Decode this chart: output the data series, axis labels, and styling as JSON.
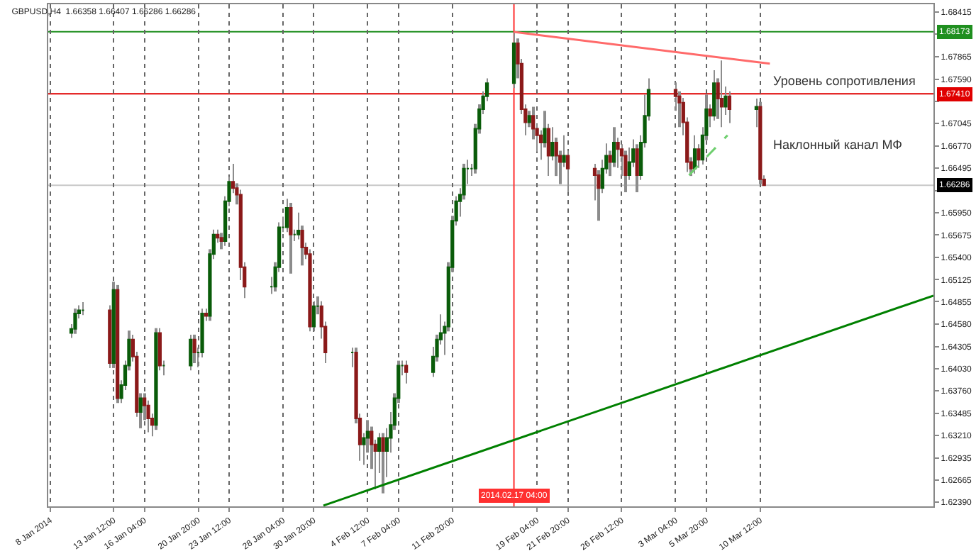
{
  "chart_data": {
    "type": "candlestick",
    "title": "GBPUSD,H4  1.66358 1.66407 1.66286 1.66286",
    "series": [
      {
        "x": [
          "2014-01-09T20:00",
          "2014-01-10T04:00",
          "2014-01-10T12:00",
          "2014-01-10T20:00",
          "2014-01-13T04:00",
          "2014-01-13T12:00",
          "2014-01-13T20:00",
          "2014-01-14T04:00",
          "2014-01-14T12:00",
          "2014-01-14T20:00",
          "2014-01-15T04:00",
          "2014-01-15T12:00",
          "2014-01-15T20:00",
          "2014-01-16T04:00",
          "2014-01-16T12:00",
          "2014-01-16T20:00",
          "2014-01-17T04:00",
          "2014-01-17T12:00",
          "2014-01-17T20:00",
          "2014-01-20T04:00",
          "2014-01-20T12:00",
          "2014-01-20T20:00",
          "2014-01-21T04:00",
          "2014-01-21T12:00",
          "2014-01-21T20:00",
          "2014-01-22T04:00",
          "2014-01-22T12:00",
          "2014-01-22T20:00",
          "2014-01-23T04:00",
          "2014-01-23T12:00",
          "2014-01-23T20:00",
          "2014-01-24T04:00",
          "2014-01-24T12:00",
          "2014-01-24T20:00",
          "2014-01-27T04:00",
          "2014-01-27T12:00",
          "2014-01-27T20:00",
          "2014-01-28T04:00",
          "2014-01-28T12:00",
          "2014-01-28T20:00",
          "2014-01-29T04:00",
          "2014-01-29T12:00",
          "2014-01-29T20:00",
          "2014-01-30T04:00",
          "2014-01-30T12:00",
          "2014-01-30T20:00",
          "2014-01-31T04:00",
          "2014-01-31T12:00",
          "2014-01-31T20:00",
          "2014-02-03T04:00",
          "2014-02-03T12:00",
          "2014-02-03T20:00",
          "2014-02-04T04:00",
          "2014-02-04T12:00",
          "2014-02-04T20:00",
          "2014-02-05T04:00",
          "2014-02-05T12:00",
          "2014-02-05T20:00",
          "2014-02-06T04:00",
          "2014-02-06T12:00",
          "2014-02-06T20:00",
          "2014-02-07T04:00",
          "2014-02-07T12:00",
          "2014-02-07T20:00",
          "2014-02-10T04:00",
          "2014-02-10T12:00",
          "2014-02-10T20:00",
          "2014-02-11T04:00",
          "2014-02-11T12:00",
          "2014-02-11T20:00",
          "2014-02-12T04:00",
          "2014-02-12T12:00",
          "2014-02-12T20:00",
          "2014-02-13T04:00",
          "2014-02-13T12:00",
          "2014-02-13T20:00",
          "2014-02-14T04:00",
          "2014-02-14T12:00",
          "2014-02-14T20:00",
          "2014-02-17T04:00",
          "2014-02-17T12:00",
          "2014-02-17T20:00",
          "2014-02-18T04:00",
          "2014-02-18T12:00",
          "2014-02-18T20:00",
          "2014-02-19T04:00",
          "2014-02-19T12:00",
          "2014-02-19T20:00",
          "2014-02-20T04:00",
          "2014-02-20T12:00",
          "2014-02-20T20:00",
          "2014-02-21T04:00",
          "2014-02-21T12:00",
          "2014-02-21T20:00",
          "2014-02-24T04:00",
          "2014-02-24T12:00",
          "2014-02-24T20:00",
          "2014-02-25T04:00",
          "2014-02-25T12:00",
          "2014-02-25T20:00",
          "2014-02-26T04:00",
          "2014-02-26T12:00",
          "2014-02-26T20:00",
          "2014-02-27T04:00",
          "2014-02-27T12:00",
          "2014-02-27T20:00",
          "2014-02-28T04:00",
          "2014-02-28T12:00",
          "2014-02-28T20:00",
          "2014-03-03T04:00",
          "2014-03-03T12:00",
          "2014-03-03T20:00",
          "2014-03-04T04:00",
          "2014-03-04T12:00",
          "2014-03-04T20:00",
          "2014-03-05T04:00",
          "2014-03-05T12:00",
          "2014-03-05T20:00",
          "2014-03-06T04:00",
          "2014-03-06T12:00",
          "2014-03-06T20:00",
          "2014-03-07T04:00",
          "2014-03-07T12:00",
          "2014-03-07T20:00",
          "2014-03-10T04:00",
          "2014-03-10T12:00",
          "2014-03-10T20:00"
        ],
        "ohlc": [
          [
            1.6447,
            1.6458,
            1.6441,
            1.6452
          ],
          [
            1.6452,
            1.6477,
            1.6446,
            1.6471
          ],
          [
            1.6471,
            1.6481,
            1.6465,
            1.6475
          ],
          [
            1.6475,
            1.6485,
            1.6469,
            1.6475
          ],
          [
            1.6475,
            1.6481,
            1.6404,
            1.641
          ],
          [
            1.641,
            1.651,
            1.6404,
            1.65
          ],
          [
            1.65,
            1.6506,
            1.6361,
            1.6367
          ],
          [
            1.6367,
            1.6389,
            1.6361,
            1.6383
          ],
          [
            1.6383,
            1.6413,
            1.6377,
            1.6407
          ],
          [
            1.6407,
            1.645,
            1.6401,
            1.6439
          ],
          [
            1.6439,
            1.6445,
            1.6412,
            1.6418
          ],
          [
            1.6418,
            1.6424,
            1.6344,
            1.635
          ],
          [
            1.635,
            1.6373,
            1.633,
            1.6367
          ],
          [
            1.6367,
            1.6373,
            1.634,
            1.6358
          ],
          [
            1.6358,
            1.6364,
            1.6325,
            1.6342
          ],
          [
            1.6342,
            1.6348,
            1.632,
            1.6334
          ],
          [
            1.6334,
            1.6453,
            1.6328,
            1.6447
          ],
          [
            1.6447,
            1.6453,
            1.6401,
            1.6407
          ],
          [
            1.6407,
            1.6413,
            1.6395,
            1.6407
          ],
          [
            1.6407,
            1.6445,
            1.6401,
            1.6439
          ],
          [
            1.6439,
            1.6445,
            1.641,
            1.6423
          ],
          [
            1.6423,
            1.6429,
            1.6405,
            1.6423
          ],
          [
            1.6423,
            1.6477,
            1.6417,
            1.6471
          ],
          [
            1.6471,
            1.6477,
            1.6462,
            1.6468
          ],
          [
            1.6468,
            1.655,
            1.6462,
            1.6544
          ],
          [
            1.6544,
            1.6574,
            1.6538,
            1.6568
          ],
          [
            1.6568,
            1.6574,
            1.6558,
            1.6564
          ],
          [
            1.6564,
            1.657,
            1.655,
            1.656
          ],
          [
            1.656,
            1.6615,
            1.6554,
            1.6609
          ],
          [
            1.6609,
            1.6639,
            1.6603,
            1.6633
          ],
          [
            1.6633,
            1.6655,
            1.6619,
            1.6625
          ],
          [
            1.6625,
            1.6631,
            1.6605,
            1.6617
          ],
          [
            1.6617,
            1.6623,
            1.6512,
            1.6528
          ],
          [
            1.6528,
            1.6534,
            1.649,
            1.6504
          ],
          [
            1.6504,
            1.6516,
            1.6495,
            1.6504
          ],
          [
            1.6504,
            1.6534,
            1.6498,
            1.6528
          ],
          [
            1.6528,
            1.6583,
            1.6522,
            1.6577
          ],
          [
            1.6577,
            1.659,
            1.6571,
            1.6577
          ],
          [
            1.6577,
            1.6612,
            1.6571,
            1.6601
          ],
          [
            1.6601,
            1.6607,
            1.652,
            1.6568
          ],
          [
            1.6568,
            1.6574,
            1.656,
            1.6568
          ],
          [
            1.6568,
            1.6595,
            1.6562,
            1.6573
          ],
          [
            1.6573,
            1.6579,
            1.653,
            1.6552
          ],
          [
            1.6552,
            1.6558,
            1.6538,
            1.6544
          ],
          [
            1.6544,
            1.655,
            1.6449,
            1.6455
          ],
          [
            1.6455,
            1.6486,
            1.6449,
            1.648
          ],
          [
            1.648,
            1.6492,
            1.647,
            1.648
          ],
          [
            1.648,
            1.6486,
            1.644,
            1.6455
          ],
          [
            1.6455,
            1.6461,
            1.641,
            1.6423
          ],
          [
            1.6423,
            1.6429,
            1.6405,
            1.6423
          ],
          [
            1.6423,
            1.6429,
            1.6336,
            1.6342
          ],
          [
            1.6342,
            1.6348,
            1.629,
            1.631
          ],
          [
            1.631,
            1.6324,
            1.6285,
            1.6318
          ],
          [
            1.6318,
            1.634,
            1.63,
            1.6326
          ],
          [
            1.6326,
            1.6332,
            1.628,
            1.631
          ],
          [
            1.631,
            1.6316,
            1.6255,
            1.6302
          ],
          [
            1.6302,
            1.6324,
            1.6275,
            1.6318
          ],
          [
            1.6318,
            1.6324,
            1.625,
            1.6302
          ],
          [
            1.6302,
            1.633,
            1.627,
            1.6318
          ],
          [
            1.6318,
            1.635,
            1.63,
            1.6334
          ],
          [
            1.6334,
            1.6373,
            1.6328,
            1.6367
          ],
          [
            1.6367,
            1.6413,
            1.6361,
            1.6407
          ],
          [
            1.6407,
            1.6413,
            1.6395,
            1.6407
          ],
          [
            1.6407,
            1.6413,
            1.6385,
            1.6399
          ],
          [
            1.6399,
            1.643,
            1.6393,
            1.6418
          ],
          [
            1.6418,
            1.6445,
            1.6412,
            1.6439
          ],
          [
            1.6439,
            1.647,
            1.6433,
            1.6447
          ],
          [
            1.6447,
            1.6461,
            1.642,
            1.6455
          ],
          [
            1.6455,
            1.6534,
            1.6449,
            1.6528
          ],
          [
            1.6528,
            1.6591,
            1.6522,
            1.6585
          ],
          [
            1.6585,
            1.6615,
            1.6579,
            1.6609
          ],
          [
            1.6609,
            1.6625,
            1.659,
            1.6617
          ],
          [
            1.6617,
            1.6655,
            1.6611,
            1.6649
          ],
          [
            1.6649,
            1.666,
            1.663,
            1.6649
          ],
          [
            1.6649,
            1.6655,
            1.664,
            1.6649
          ],
          [
            1.6649,
            1.6704,
            1.6643,
            1.6698
          ],
          [
            1.6698,
            1.6728,
            1.6692,
            1.6722
          ],
          [
            1.6722,
            1.6744,
            1.6716,
            1.6738
          ],
          [
            1.6738,
            1.676,
            1.6732,
            1.6754
          ],
          [
            1.6754,
            1.6817,
            1.6748,
            1.6803
          ],
          [
            1.6803,
            1.6809,
            1.676,
            1.6778
          ],
          [
            1.6778,
            1.6784,
            1.6716,
            1.6722
          ],
          [
            1.6722,
            1.6728,
            1.669,
            1.6706
          ],
          [
            1.6706,
            1.672,
            1.67,
            1.6714
          ],
          [
            1.6714,
            1.6725,
            1.6685,
            1.6698
          ],
          [
            1.6698,
            1.6704,
            1.667,
            1.669
          ],
          [
            1.669,
            1.6696,
            1.666,
            1.6681
          ],
          [
            1.6681,
            1.672,
            1.6675,
            1.6698
          ],
          [
            1.6698,
            1.6704,
            1.664,
            1.6665
          ],
          [
            1.6665,
            1.67,
            1.6659,
            1.6681
          ],
          [
            1.6681,
            1.6687,
            1.664,
            1.6665
          ],
          [
            1.6665,
            1.6671,
            1.663,
            1.6657
          ],
          [
            1.6657,
            1.669,
            1.6651,
            1.6665
          ],
          [
            1.6665,
            1.6671,
            1.662,
            1.6649
          ],
          [
            1.6649,
            1.6655,
            1.661,
            1.6641
          ],
          [
            1.6641,
            1.6647,
            1.6585,
            1.6625
          ],
          [
            1.6625,
            1.666,
            1.6619,
            1.6649
          ],
          [
            1.6649,
            1.668,
            1.6643,
            1.6665
          ],
          [
            1.6665,
            1.6671,
            1.664,
            1.6657
          ],
          [
            1.6657,
            1.67,
            1.6651,
            1.6681
          ],
          [
            1.6681,
            1.6687,
            1.665,
            1.6673
          ],
          [
            1.6673,
            1.6679,
            1.664,
            1.6665
          ],
          [
            1.6665,
            1.6671,
            1.662,
            1.6641
          ],
          [
            1.6641,
            1.6675,
            1.6635,
            1.6657
          ],
          [
            1.6657,
            1.6685,
            1.6651,
            1.6673
          ],
          [
            1.6673,
            1.6679,
            1.662,
            1.6641
          ],
          [
            1.6641,
            1.669,
            1.6635,
            1.6681
          ],
          [
            1.6681,
            1.674,
            1.6675,
            1.6714
          ],
          [
            1.6714,
            1.676,
            1.6708,
            1.6746
          ],
          [
            1.6746,
            1.6755,
            1.672,
            1.6738
          ],
          [
            1.6738,
            1.6744,
            1.67,
            1.673
          ],
          [
            1.673,
            1.6736,
            1.669,
            1.6706
          ],
          [
            1.6706,
            1.6712,
            1.6645,
            1.6657
          ],
          [
            1.6657,
            1.6663,
            1.664,
            1.6649
          ],
          [
            1.6649,
            1.669,
            1.6643,
            1.6673
          ],
          [
            1.6673,
            1.6679,
            1.665,
            1.666
          ],
          [
            1.666,
            1.67,
            1.6654,
            1.669
          ],
          [
            1.669,
            1.674,
            1.6684,
            1.6722
          ],
          [
            1.6722,
            1.6728,
            1.67,
            1.6714
          ],
          [
            1.6714,
            1.677,
            1.6708,
            1.6754
          ],
          [
            1.6754,
            1.676,
            1.671,
            1.6735
          ],
          [
            1.6735,
            1.6782,
            1.67,
            1.6725
          ],
          [
            1.6725,
            1.675,
            1.6715,
            1.6738
          ],
          [
            1.6738,
            1.6744,
            1.6705,
            1.6722
          ],
          [
            1.6722,
            1.6735,
            1.67,
            1.6725
          ],
          [
            1.6725,
            1.6731,
            1.663,
            1.6636
          ],
          [
            1.66358,
            1.66407,
            1.66286,
            1.66286
          ]
        ]
      },
      {
        "type": "line",
        "color": "#008000",
        "x": [
          "2014-01-31T16:00",
          "2014-03-25T12:00"
        ],
        "values": [
          1.6235,
          1.6493
        ]
      },
      {
        "type": "line",
        "color": "#ff6a6a",
        "x": [
          "2014-02-17T04:00",
          "2014-03-11T08:00"
        ],
        "values": [
          1.6817,
          1.6778
        ]
      },
      {
        "type": "line",
        "color": "#6fcf6f",
        "line_style": "dashed",
        "x": [
          "2014-03-04T08:00",
          "2014-03-07T16:00"
        ],
        "values": [
          1.6641,
          1.669
        ]
      }
    ],
    "xlim": [
      "2014-01-07T20:00",
      "2014-03-25T12:00"
    ],
    "xticks": [
      {
        "value": "2014-01-08T00:00",
        "label": "8 Jan 2014"
      },
      {
        "value": "2014-01-13T12:00",
        "label": "13 Jan 12:00"
      },
      {
        "value": "2014-01-16T04:00",
        "label": "16 Jan 04:00"
      },
      {
        "value": "2014-01-20T20:00",
        "label": "20 Jan 20:00"
      },
      {
        "value": "2014-01-23T12:00",
        "label": "23 Jan 12:00"
      },
      {
        "value": "2014-01-28T04:00",
        "label": "28 Jan 04:00"
      },
      {
        "value": "2014-01-30T20:00",
        "label": "30 Jan 20:00"
      },
      {
        "value": "2014-02-04T12:00",
        "label": "4 Feb 12:00"
      },
      {
        "value": "2014-02-07T04:00",
        "label": "7 Feb 04:00"
      },
      {
        "value": "2014-02-11T20:00",
        "label": "11 Feb 20:00"
      },
      {
        "value": "2014-02-19T04:00",
        "label": "19 Feb 04:00"
      },
      {
        "value": "2014-02-21T20:00",
        "label": "21 Feb 20:00"
      },
      {
        "value": "2014-02-26T12:00",
        "label": "26 Feb 12:00"
      },
      {
        "value": "2014-03-03T04:00",
        "label": "3 Mar 04:00"
      },
      {
        "value": "2014-03-05T20:00",
        "label": "5 Mar 20:00"
      },
      {
        "value": "2014-03-10T12:00",
        "label": "10 Mar 12:00"
      }
    ],
    "ylim": [
      1.6234,
      1.6851
    ],
    "yticks": [
      1.68415,
      {
        "value": 1.6814,
        "label": null
      },
      1.67865,
      {
        "value": 1.6759,
        "label": "1.67590"
      },
      {
        "value": 1.6732,
        "label": null
      },
      1.67045,
      {
        "value": 1.6677,
        "label": "1.66770"
      },
      1.66495,
      {
        "value": 1.6622,
        "label": null
      },
      {
        "value": 1.6595,
        "label": "1.65950"
      },
      1.65675,
      {
        "value": 1.654,
        "label": "1.65400"
      },
      1.65125,
      1.64855,
      {
        "value": 1.6458,
        "label": "1.64580"
      },
      1.64305,
      {
        "value": 1.6403,
        "label": "1.64030"
      },
      {
        "value": 1.6376,
        "label": "1.63760"
      },
      1.63485,
      {
        "value": 1.6321,
        "label": "1.63210"
      },
      1.62935,
      1.62665,
      {
        "value": 1.6239,
        "label": "1.62390"
      }
    ],
    "grid": "x",
    "ref_lines": [
      {
        "axis": "y",
        "value": 1.68173,
        "label": "1.68173",
        "color": "#1f8f1f"
      },
      {
        "axis": "y",
        "value": 1.6741,
        "label": "1.67410",
        "color": "#e00000"
      },
      {
        "axis": "y",
        "value": 1.66286,
        "label": "1.66286",
        "color": "#c8c8c8"
      },
      {
        "axis": "x",
        "value": "2014-02-17T04:00",
        "label": "2014.02.17 04:00",
        "color": "#ff3030"
      }
    ],
    "annotations": [
      "Уровень сопротивления",
      "Наклонный канал МФ"
    ]
  }
}
